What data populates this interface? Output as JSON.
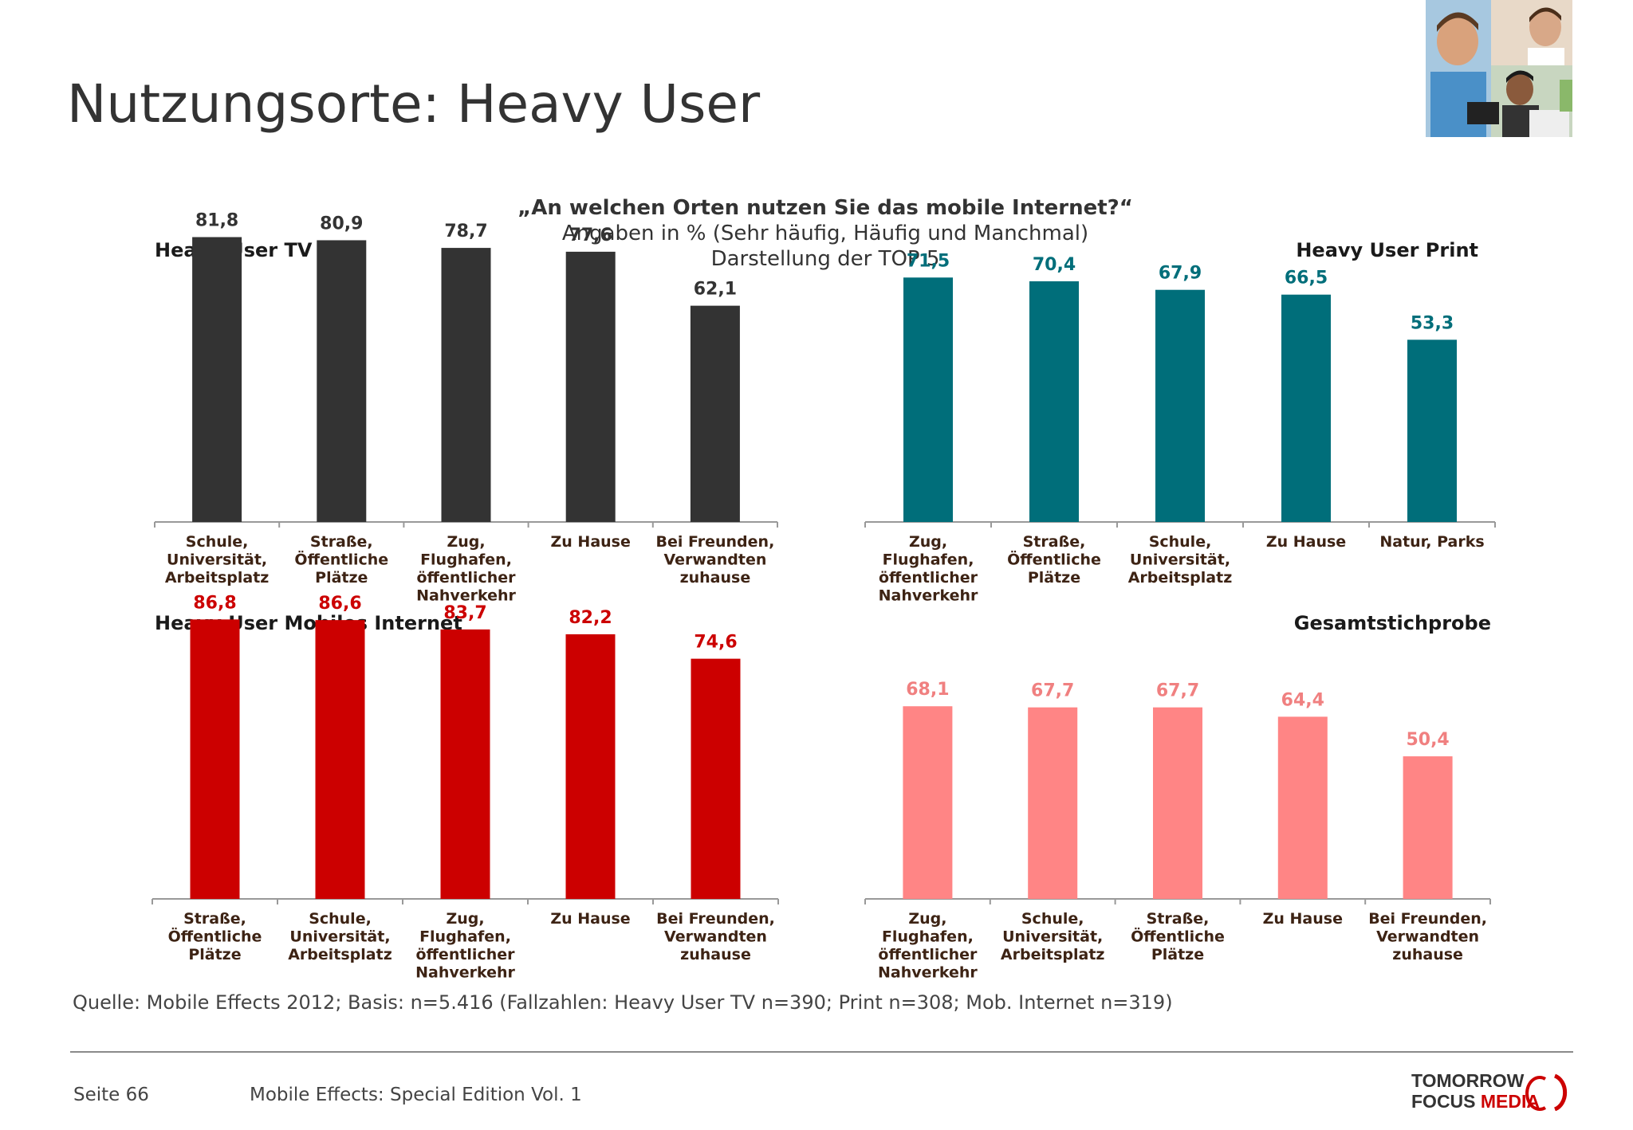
{
  "title": "Nutzungsorte: Heavy User",
  "question": {
    "line1": "„An welchen Orten nutzen Sie das mobile Internet?“",
    "line2": "Angaben in % (Sehr häufig, Häufig und Manchmal)",
    "line3": "Darstellung der TOP 5"
  },
  "source": "Quelle: Mobile Effects 2012; Basis: n=5.416 (Fallzahlen: Heavy User TV n=390; Print n=308; Mob. Internet n=319)",
  "footer": {
    "page": "Seite 66",
    "edition": "Mobile Effects: Special Edition Vol. 1",
    "logo_line1": "TOMORROW",
    "logo_line2a": "FOCUS",
    "logo_line2b": "MEDIA"
  },
  "colors": {
    "tv": "#333333",
    "print": "#006e7a",
    "internet": "#cc0000",
    "gesamt": "#ff8585",
    "gesamt_label": "#f08080",
    "axis": "#999999",
    "category_text": "#3d2314"
  },
  "chart_data": [
    {
      "type": "bar",
      "title": "Heavy User TV",
      "color": "#333333",
      "categories": [
        "Schule, Universität, Arbeitsplatz",
        "Straße, Öffentliche Plätze",
        "Zug, Flughafen, öffentlicher Nahverkehr",
        "Zu Hause",
        "Bei Freunden, Verwandten zuhause"
      ],
      "category_lines": [
        [
          "Schule,",
          "Universität,",
          "Arbeitsplatz"
        ],
        [
          "Straße,",
          "Öffentliche",
          "Plätze"
        ],
        [
          "Zug,",
          "Flughafen,",
          "öffentlicher",
          "Nahverkehr"
        ],
        [
          "Zu Hause"
        ],
        [
          "Bei Freunden,",
          "Verwandten",
          "zuhause"
        ]
      ],
      "values": [
        81.8,
        80.9,
        78.7,
        77.6,
        62.1
      ],
      "labels": [
        "81,8",
        "80,9",
        "78,7",
        "77,6",
        "62,1"
      ],
      "ylim": [
        0,
        100
      ]
    },
    {
      "type": "bar",
      "title": "Heavy User Print",
      "color": "#006e7a",
      "categories": [
        "Zug, Flughafen, öffentlicher Nahverkehr",
        "Straße, Öffentliche Plätze",
        "Schule, Universität, Arbeitsplatz",
        "Zu Hause",
        "Natur, Parks"
      ],
      "category_lines": [
        [
          "Zug,",
          "Flughafen,",
          "öffentlicher",
          "Nahverkehr"
        ],
        [
          "Straße,",
          "Öffentliche",
          "Plätze"
        ],
        [
          "Schule,",
          "Universität,",
          "Arbeitsplatz"
        ],
        [
          "Zu Hause"
        ],
        [
          "Natur, Parks"
        ]
      ],
      "values": [
        71.5,
        70.4,
        67.9,
        66.5,
        53.3
      ],
      "labels": [
        "71,5",
        "70,4",
        "67,9",
        "66,5",
        "53,3"
      ],
      "ylim": [
        0,
        100
      ]
    },
    {
      "type": "bar",
      "title": "Heavy User Mobiles Internet",
      "color": "#cc0000",
      "categories": [
        "Straße, Öffentliche Plätze",
        "Schule, Universität, Arbeitsplatz",
        "Zug, Flughafen, öffentlicher Nahverkehr",
        "Zu Hause",
        "Bei Freunden, Verwandten zuhause"
      ],
      "category_lines": [
        [
          "Straße,",
          "Öffentliche",
          "Plätze"
        ],
        [
          "Schule,",
          "Universität,",
          "Arbeitsplatz"
        ],
        [
          "Zug,",
          "Flughafen,",
          "öffentlicher",
          "Nahverkehr"
        ],
        [
          "Zu Hause"
        ],
        [
          "Bei Freunden,",
          "Verwandten",
          "zuhause"
        ]
      ],
      "values": [
        86.8,
        86.6,
        83.7,
        82.2,
        74.6
      ],
      "labels": [
        "86,8",
        "86,6",
        "83,7",
        "82,2",
        "74,6"
      ],
      "ylim": [
        0,
        100
      ]
    },
    {
      "type": "bar",
      "title": "Gesamtstichprobe",
      "color": "#ff8585",
      "categories": [
        "Zug, Flughafen, öffentlicher Nahverkehr",
        "Schule, Universität, Arbeitsplatz",
        "Straße, Öffentliche Plätze",
        "Zu Hause",
        "Bei Freunden, Verwandten zuhause"
      ],
      "category_lines": [
        [
          "Zug,",
          "Flughafen,",
          "öffentlicher",
          "Nahverkehr"
        ],
        [
          "Schule,",
          "Universität,",
          "Arbeitsplatz"
        ],
        [
          "Straße,",
          "Öffentliche",
          "Plätze"
        ],
        [
          "Zu Hause"
        ],
        [
          "Bei Freunden,",
          "Verwandten",
          "zuhause"
        ]
      ],
      "values": [
        68.1,
        67.7,
        67.7,
        64.4,
        50.4
      ],
      "labels": [
        "68,1",
        "67,7",
        "67,7",
        "64,4",
        "50,4"
      ],
      "ylim": [
        0,
        100
      ]
    }
  ]
}
